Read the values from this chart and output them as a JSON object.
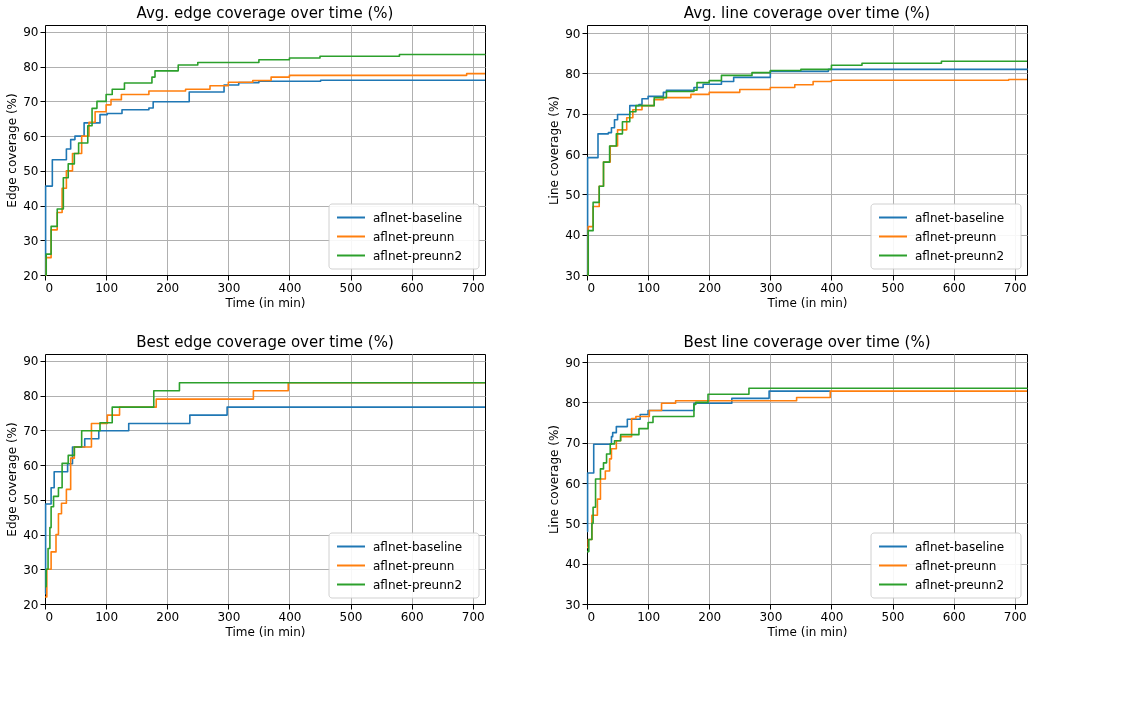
{
  "chart_data": [
    {
      "type": "step",
      "title": "Avg. edge coverage over time (%)",
      "xlabel": "Time (in min)",
      "ylabel": "Edge coverage (%)",
      "xlim": [
        0,
        720
      ],
      "ylim": [
        20,
        92
      ],
      "xticks": [
        0,
        100,
        200,
        300,
        400,
        500,
        600,
        700
      ],
      "yticks": [
        20,
        30,
        40,
        50,
        60,
        70,
        80,
        90
      ],
      "grid": true,
      "legend": "bottom right",
      "series": [
        {
          "name": "aflnet-baseline",
          "color": "#1f77b4",
          "x": [
            0,
            1,
            12,
            35,
            42,
            49,
            64,
            90,
            102,
            126,
            170,
            177,
            236,
            293,
            317,
            350,
            451,
            720
          ],
          "values": [
            20,
            45.6,
            53.2,
            56.3,
            59,
            60,
            63.8,
            66.2,
            66.5,
            67.6,
            68.1,
            69.9,
            72.7,
            74.7,
            75.4,
            75.8,
            76.1,
            76.1
          ]
        },
        {
          "name": "aflnet-preunn",
          "color": "#ff7f0e",
          "x": [
            0,
            2,
            10,
            20,
            28,
            35,
            45,
            60,
            72,
            82,
            100,
            108,
            125,
            170,
            230,
            270,
            300,
            340,
            370,
            400,
            690,
            720
          ],
          "values": [
            20,
            25,
            33,
            38,
            45,
            50,
            55,
            60,
            64,
            67,
            69,
            70.5,
            72,
            73,
            73.5,
            74.5,
            75.5,
            76,
            77,
            77.5,
            78,
            78
          ]
        },
        {
          "name": "aflnet-preunn2",
          "color": "#2ca02c",
          "x": [
            0,
            2,
            10,
            20,
            30,
            38,
            48,
            55,
            70,
            77,
            85,
            100,
            110,
            130,
            175,
            180,
            218,
            250,
            350,
            400,
            450,
            580,
            720
          ],
          "values": [
            20,
            26,
            34,
            39,
            48,
            52,
            55,
            58,
            63,
            68,
            70,
            72,
            73.5,
            75.3,
            77,
            78.8,
            80.5,
            81.2,
            82,
            82.5,
            83,
            83.5,
            83.6
          ]
        }
      ]
    },
    {
      "type": "step",
      "title": "Avg. line coverage over time (%)",
      "xlabel": "Time (in min)",
      "ylabel": "Line coverage (%)",
      "xlim": [
        0,
        720
      ],
      "ylim": [
        30,
        92
      ],
      "xticks": [
        0,
        100,
        200,
        300,
        400,
        500,
        600,
        700
      ],
      "yticks": [
        30,
        40,
        50,
        60,
        70,
        80,
        90
      ],
      "grid": true,
      "legend": "bottom right",
      "series": [
        {
          "name": "aflnet-baseline",
          "color": "#1f77b4",
          "x": [
            0,
            1,
            18,
            35,
            40,
            45,
            50,
            70,
            85,
            90,
            100,
            125,
            130,
            175,
            190,
            220,
            240,
            300,
            395,
            720
          ],
          "values": [
            30,
            59.1,
            65,
            65.3,
            66.5,
            68.5,
            69.8,
            72,
            72.3,
            73.7,
            74.3,
            75.3,
            75.8,
            76.5,
            77.3,
            78,
            79,
            80.5,
            81,
            81.2
          ]
        },
        {
          "name": "aflnet-preunn",
          "color": "#ff7f0e",
          "x": [
            0,
            2,
            10,
            20,
            27,
            38,
            50,
            65,
            75,
            90,
            110,
            125,
            170,
            200,
            250,
            300,
            340,
            370,
            400,
            690,
            720
          ],
          "values": [
            30,
            42,
            47,
            52,
            58,
            62,
            66,
            69,
            71,
            72,
            73.5,
            74,
            74.8,
            75.3,
            76,
            76.5,
            77.2,
            78,
            78.3,
            78.5,
            78.5
          ]
        },
        {
          "name": "aflnet-preunn2",
          "color": "#2ca02c",
          "x": [
            0,
            2,
            10,
            20,
            27,
            37,
            48,
            58,
            70,
            80,
            110,
            130,
            175,
            180,
            200,
            220,
            270,
            300,
            350,
            400,
            450,
            580,
            720
          ],
          "values": [
            30,
            41,
            48,
            52,
            58,
            62,
            65,
            68,
            70.5,
            72,
            74,
            75.5,
            75.8,
            77.7,
            78.2,
            79.5,
            80.2,
            80.7,
            81,
            82,
            82.5,
            83,
            83
          ]
        }
      ]
    },
    {
      "type": "step",
      "title": "Best edge coverage over time (%)",
      "xlabel": "Time (in min)",
      "ylabel": "Edge coverage (%)",
      "xlim": [
        0,
        720
      ],
      "ylim": [
        20,
        92
      ],
      "xticks": [
        0,
        100,
        200,
        300,
        400,
        500,
        600,
        700
      ],
      "yticks": [
        20,
        30,
        40,
        50,
        60,
        70,
        80,
        90
      ],
      "grid": true,
      "legend": "bottom right",
      "series": [
        {
          "name": "aflnet-baseline",
          "color": "#1f77b4",
          "x": [
            0,
            1,
            10,
            15,
            37,
            45,
            65,
            88,
            137,
            237,
            298,
            720
          ],
          "values": [
            23,
            48.8,
            53.5,
            58.1,
            60.4,
            65.2,
            67.6,
            69.9,
            72,
            74.4,
            76.7,
            76.7
          ]
        },
        {
          "name": "aflnet-preunn",
          "color": "#ff7f0e",
          "x": [
            0,
            3,
            10,
            18,
            22,
            27,
            35,
            42,
            48,
            76,
            102,
            122,
            182,
            341,
            398,
            720
          ],
          "values": [
            22,
            30,
            35,
            40,
            46,
            49,
            53,
            62,
            65.2,
            72,
            74.4,
            76.7,
            79,
            81.4,
            83.7,
            83.7
          ]
        },
        {
          "name": "aflnet-preunn2",
          "color": "#2ca02c",
          "x": [
            0,
            2,
            5,
            8,
            10,
            14,
            22,
            28,
            38,
            48,
            60,
            90,
            110,
            178,
            220,
            720
          ],
          "values": [
            25,
            30,
            36,
            42,
            48,
            51,
            53.5,
            60.5,
            62.8,
            65.2,
            69.9,
            72.2,
            76.7,
            81.4,
            83.7,
            83.7
          ]
        }
      ]
    },
    {
      "type": "step",
      "title": "Best line coverage over time (%)",
      "xlabel": "Time (in min)",
      "ylabel": "Line coverage (%)",
      "xlim": [
        0,
        720
      ],
      "ylim": [
        30,
        92
      ],
      "xticks": [
        0,
        100,
        200,
        300,
        400,
        500,
        600,
        700
      ],
      "yticks": [
        30,
        40,
        50,
        60,
        70,
        80,
        90
      ],
      "grid": true,
      "legend": "bottom right",
      "series": [
        {
          "name": "aflnet-baseline",
          "color": "#1f77b4",
          "x": [
            0,
            1,
            11,
            40,
            42,
            48,
            66,
            87,
            100,
            175,
            237,
            298,
            398
          ],
          "values": [
            48,
            62.5,
            69.6,
            71.5,
            72.5,
            74,
            75.8,
            77,
            78,
            79.8,
            81,
            82.8,
            82.8
          ]
        },
        {
          "name": "aflnet-preunn",
          "color": "#ff7f0e",
          "x": [
            0,
            2,
            8,
            17,
            22,
            30,
            37,
            40,
            48,
            55,
            73,
            80,
            102,
            122,
            145,
            343,
            398,
            720
          ],
          "values": [
            44,
            46,
            52,
            56,
            61,
            63,
            66,
            68.5,
            70.5,
            71.5,
            76,
            76.5,
            78,
            79.8,
            80.4,
            81.2,
            82.8,
            82.8
          ]
        },
        {
          "name": "aflnet-preunn2",
          "color": "#2ca02c",
          "x": [
            0,
            3,
            8,
            10,
            14,
            22,
            27,
            32,
            38,
            45,
            55,
            85,
            100,
            108,
            175,
            178,
            198,
            265,
            720
          ],
          "values": [
            43,
            46,
            50,
            54,
            61,
            63.5,
            65,
            67.2,
            69.7,
            70.5,
            72,
            73.5,
            75,
            76.5,
            79.5,
            80,
            82,
            83.5,
            83.6
          ]
        }
      ]
    }
  ]
}
